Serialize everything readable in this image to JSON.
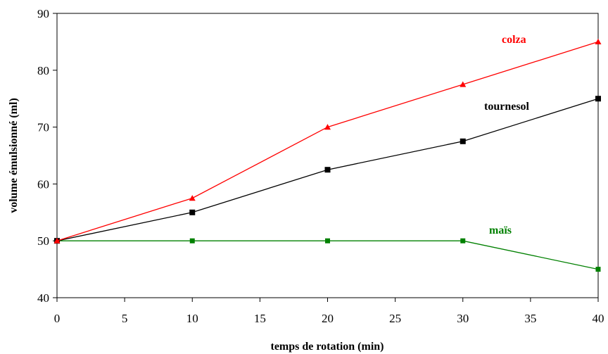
{
  "chart_data": {
    "type": "line",
    "title": "",
    "xlabel": "temps de rotation (min)",
    "ylabel": "volume émulsionné (ml)",
    "xlim": [
      0,
      40
    ],
    "ylim": [
      40,
      90
    ],
    "xticks": [
      "0",
      "5",
      "10",
      "15",
      "20",
      "25",
      "30",
      "35",
      "40"
    ],
    "yticks": [
      "40",
      "50",
      "60",
      "70",
      "80",
      "90"
    ],
    "grid": false,
    "legend": "inline labels",
    "series": [
      {
        "name": "colza",
        "color": "#ff0000",
        "marker": "triangle",
        "x": [
          0,
          10,
          20,
          30,
          40
        ],
        "y": [
          50,
          57.5,
          70,
          77.5,
          85
        ]
      },
      {
        "name": "tournesol",
        "color": "#000000",
        "marker": "square",
        "x": [
          0,
          10,
          20,
          30,
          40
        ],
        "y": [
          50,
          55,
          62.5,
          67.5,
          75
        ]
      },
      {
        "name": "maïs",
        "color": "#008000",
        "marker": "square",
        "x": [
          0,
          10,
          20,
          30,
          40
        ],
        "y": [
          50,
          50,
          50,
          50,
          45
        ]
      }
    ]
  }
}
